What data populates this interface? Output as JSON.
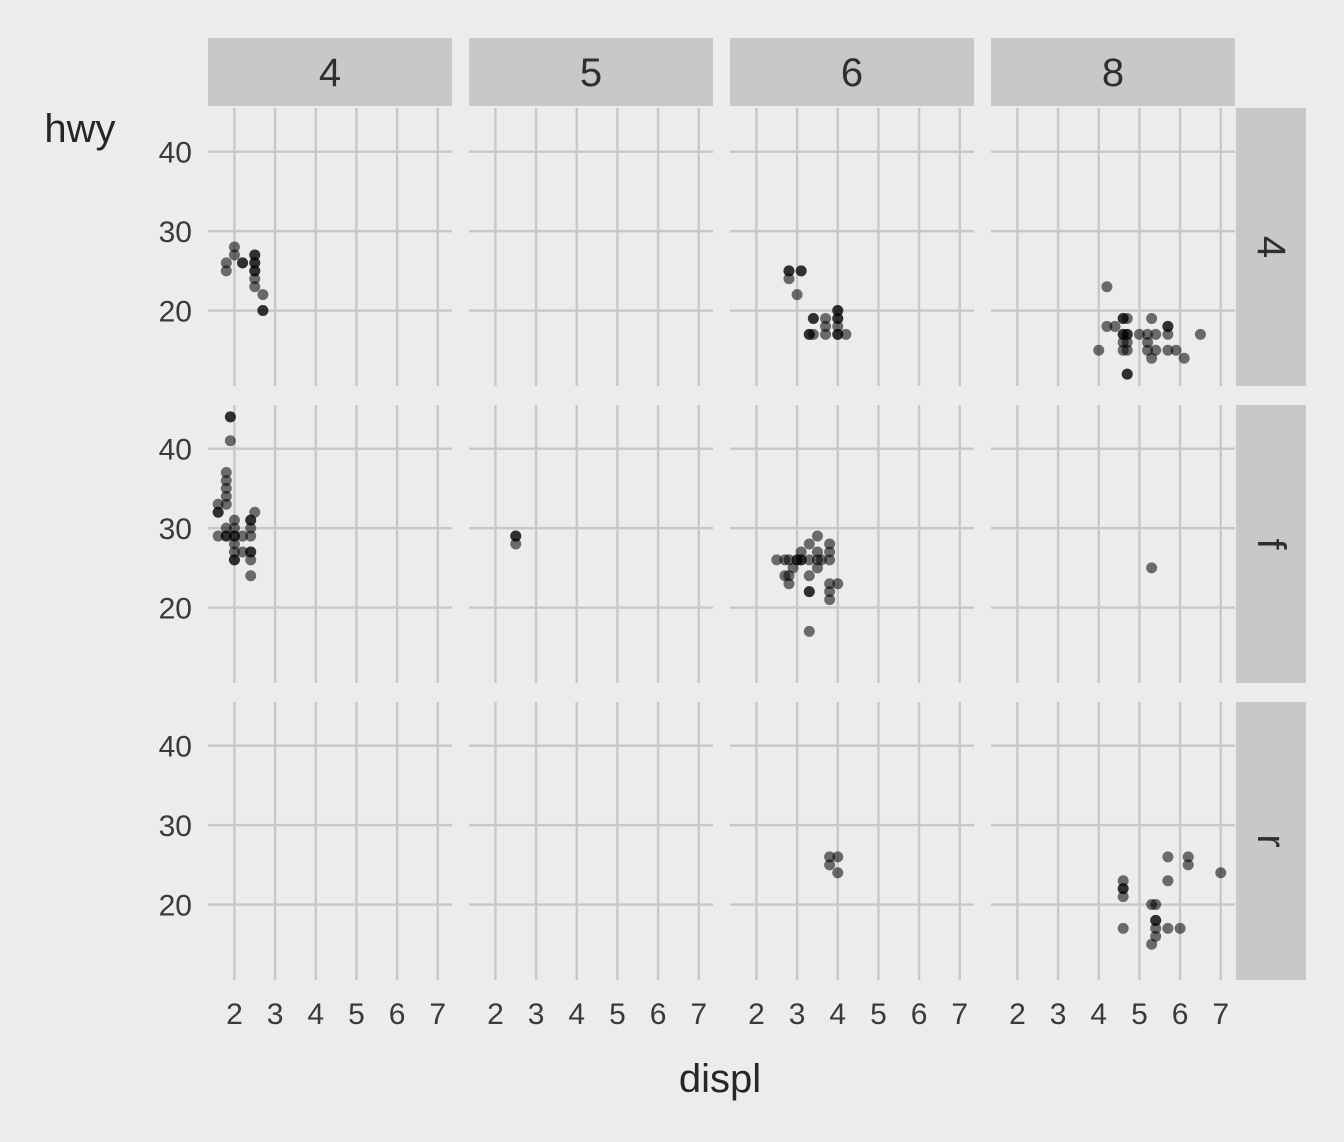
{
  "chart_data": {
    "type": "scatter",
    "xlabel": "displ",
    "ylabel": "hwy",
    "xlim": [
      1.35,
      7.35
    ],
    "ylim": [
      10.5,
      45.5
    ],
    "x_ticks": [
      2,
      3,
      4,
      5,
      6,
      7
    ],
    "y_ticks": [
      20,
      30,
      40
    ],
    "grid": true,
    "legend": "none",
    "facet_cols": {
      "variable": "cyl",
      "labels": [
        "4",
        "5",
        "6",
        "8"
      ]
    },
    "facet_rows": {
      "variable": "drv",
      "labels": [
        "4",
        "f",
        "r"
      ]
    },
    "panels": [
      {
        "row": "4",
        "col": "4",
        "points": [
          [
            1.8,
            26
          ],
          [
            1.8,
            25
          ],
          [
            2.0,
            28
          ],
          [
            2.0,
            27
          ],
          [
            2.2,
            26
          ],
          [
            2.2,
            26
          ],
          [
            2.5,
            27
          ],
          [
            2.5,
            27
          ],
          [
            2.5,
            26
          ],
          [
            2.5,
            26
          ],
          [
            2.5,
            25
          ],
          [
            2.5,
            25
          ],
          [
            2.5,
            24
          ],
          [
            2.5,
            23
          ],
          [
            2.7,
            22
          ],
          [
            2.7,
            20
          ],
          [
            2.7,
            20
          ]
        ]
      },
      {
        "row": "4",
        "col": "5",
        "points": []
      },
      {
        "row": "4",
        "col": "6",
        "points": [
          [
            2.8,
            25
          ],
          [
            2.8,
            25
          ],
          [
            2.8,
            24
          ],
          [
            3.1,
            25
          ],
          [
            3.1,
            25
          ],
          [
            3.0,
            22
          ],
          [
            3.3,
            17
          ],
          [
            3.3,
            17
          ],
          [
            3.4,
            19
          ],
          [
            3.4,
            19
          ],
          [
            3.4,
            17
          ],
          [
            3.7,
            19
          ],
          [
            3.7,
            18
          ],
          [
            3.7,
            17
          ],
          [
            4.0,
            20
          ],
          [
            4.0,
            20
          ],
          [
            4.0,
            19
          ],
          [
            4.0,
            19
          ],
          [
            4.0,
            18
          ],
          [
            4.0,
            17
          ],
          [
            4.0,
            17
          ],
          [
            4.2,
            17
          ]
        ]
      },
      {
        "row": "4",
        "col": "8",
        "points": [
          [
            4.0,
            15
          ],
          [
            4.2,
            23
          ],
          [
            4.2,
            18
          ],
          [
            4.4,
            18
          ],
          [
            4.6,
            19
          ],
          [
            4.6,
            19
          ],
          [
            4.6,
            17
          ],
          [
            4.6,
            17
          ],
          [
            4.6,
            16
          ],
          [
            4.6,
            15
          ],
          [
            4.7,
            19
          ],
          [
            4.7,
            17
          ],
          [
            4.7,
            17
          ],
          [
            4.7,
            16
          ],
          [
            4.7,
            15
          ],
          [
            4.7,
            12
          ],
          [
            4.7,
            12
          ],
          [
            5.0,
            17
          ],
          [
            5.2,
            17
          ],
          [
            5.2,
            16
          ],
          [
            5.2,
            15
          ],
          [
            5.3,
            19
          ],
          [
            5.3,
            14
          ],
          [
            5.4,
            17
          ],
          [
            5.4,
            15
          ],
          [
            5.7,
            18
          ],
          [
            5.7,
            18
          ],
          [
            5.7,
            17
          ],
          [
            5.7,
            15
          ],
          [
            5.9,
            15
          ],
          [
            6.1,
            14
          ],
          [
            6.5,
            17
          ]
        ]
      },
      {
        "row": "f",
        "col": "4",
        "points": [
          [
            1.6,
            33
          ],
          [
            1.6,
            32
          ],
          [
            1.6,
            32
          ],
          [
            1.6,
            29
          ],
          [
            1.8,
            37
          ],
          [
            1.8,
            36
          ],
          [
            1.8,
            35
          ],
          [
            1.8,
            34
          ],
          [
            1.8,
            33
          ],
          [
            1.8,
            30
          ],
          [
            1.8,
            29
          ],
          [
            1.8,
            29
          ],
          [
            1.9,
            44
          ],
          [
            1.9,
            44
          ],
          [
            1.9,
            41
          ],
          [
            2.0,
            31
          ],
          [
            2.0,
            30
          ],
          [
            2.0,
            29
          ],
          [
            2.0,
            29
          ],
          [
            2.0,
            28
          ],
          [
            2.0,
            27
          ],
          [
            2.0,
            26
          ],
          [
            2.0,
            26
          ],
          [
            2.2,
            29
          ],
          [
            2.2,
            27
          ],
          [
            2.4,
            31
          ],
          [
            2.4,
            31
          ],
          [
            2.4,
            30
          ],
          [
            2.4,
            29
          ],
          [
            2.4,
            27
          ],
          [
            2.4,
            27
          ],
          [
            2.4,
            26
          ],
          [
            2.4,
            24
          ],
          [
            2.5,
            32
          ]
        ]
      },
      {
        "row": "f",
        "col": "5",
        "points": [
          [
            2.5,
            29
          ],
          [
            2.5,
            29
          ],
          [
            2.5,
            28
          ]
        ]
      },
      {
        "row": "f",
        "col": "6",
        "points": [
          [
            2.5,
            26
          ],
          [
            2.7,
            26
          ],
          [
            2.7,
            24
          ],
          [
            2.8,
            26
          ],
          [
            2.8,
            24
          ],
          [
            2.8,
            23
          ],
          [
            2.9,
            25
          ],
          [
            3.0,
            26
          ],
          [
            3.0,
            26
          ],
          [
            3.1,
            27
          ],
          [
            3.1,
            26
          ],
          [
            3.1,
            26
          ],
          [
            3.3,
            28
          ],
          [
            3.3,
            26
          ],
          [
            3.3,
            24
          ],
          [
            3.3,
            22
          ],
          [
            3.3,
            22
          ],
          [
            3.3,
            17
          ],
          [
            3.5,
            29
          ],
          [
            3.5,
            27
          ],
          [
            3.5,
            26
          ],
          [
            3.5,
            25
          ],
          [
            3.8,
            28
          ],
          [
            3.8,
            27
          ],
          [
            3.8,
            26
          ],
          [
            3.8,
            23
          ],
          [
            3.8,
            22
          ],
          [
            3.8,
            21
          ],
          [
            3.6,
            26
          ],
          [
            4.0,
            23
          ]
        ]
      },
      {
        "row": "f",
        "col": "8",
        "points": [
          [
            5.3,
            25
          ]
        ]
      },
      {
        "row": "r",
        "col": "4",
        "points": []
      },
      {
        "row": "r",
        "col": "5",
        "points": []
      },
      {
        "row": "r",
        "col": "6",
        "points": [
          [
            3.8,
            26
          ],
          [
            3.8,
            25
          ],
          [
            4.0,
            26
          ],
          [
            4.0,
            24
          ]
        ]
      },
      {
        "row": "r",
        "col": "8",
        "points": [
          [
            4.6,
            23
          ],
          [
            4.6,
            22
          ],
          [
            4.6,
            22
          ],
          [
            4.6,
            21
          ],
          [
            4.6,
            17
          ],
          [
            5.3,
            20
          ],
          [
            5.3,
            15
          ],
          [
            5.4,
            20
          ],
          [
            5.4,
            18
          ],
          [
            5.4,
            18
          ],
          [
            5.4,
            17
          ],
          [
            5.4,
            16
          ],
          [
            5.7,
            26
          ],
          [
            5.7,
            23
          ],
          [
            5.7,
            17
          ],
          [
            6.0,
            17
          ],
          [
            6.2,
            26
          ],
          [
            6.2,
            25
          ],
          [
            7.0,
            24
          ]
        ]
      }
    ]
  }
}
